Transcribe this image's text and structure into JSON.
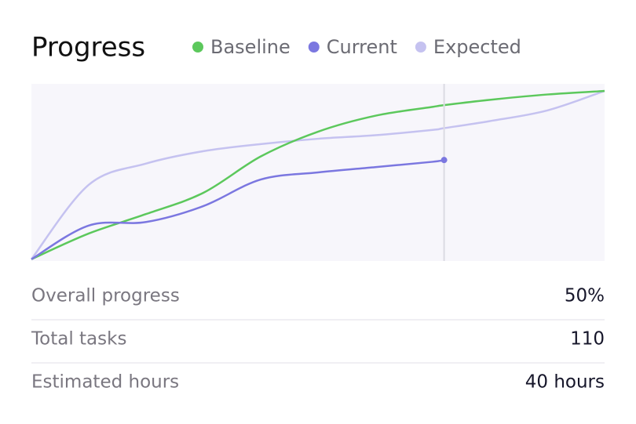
{
  "chart_data": {
    "type": "line",
    "title": "Progress",
    "x": [
      0,
      10,
      20,
      30,
      40,
      50,
      60,
      70,
      72,
      80,
      90,
      100
    ],
    "xlim": [
      0,
      100
    ],
    "ylim": [
      0,
      100
    ],
    "series": [
      {
        "name": "Baseline",
        "color": "#5cc85c",
        "values": [
          1,
          15.5,
          26.5,
          38.5,
          59,
          73,
          82,
          87,
          88,
          91,
          94,
          96
        ]
      },
      {
        "name": "Current",
        "color": "#7b77e0",
        "values": [
          1,
          20,
          22,
          31,
          46,
          50,
          53,
          56,
          57,
          null,
          null,
          null
        ]
      },
      {
        "name": "Expected",
        "color": "#c5c2f0",
        "values": [
          1,
          43,
          55,
          62,
          66,
          69,
          71,
          74,
          75,
          79,
          85,
          96
        ]
      }
    ]
  },
  "stats": {
    "rows": [
      {
        "label": "Overall progress",
        "value": "50%"
      },
      {
        "label": "Total tasks",
        "value": "110"
      },
      {
        "label": "Estimated hours",
        "value": "40 hours"
      }
    ]
  }
}
